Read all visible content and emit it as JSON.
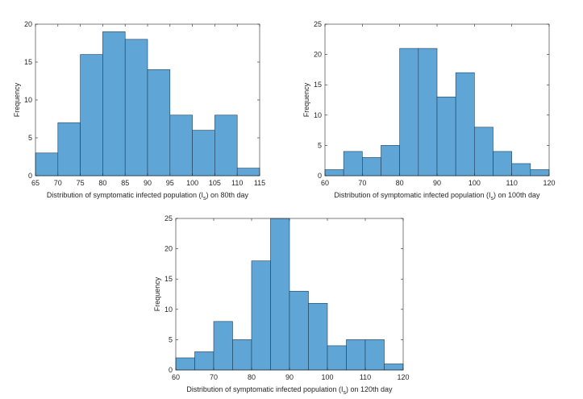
{
  "colors": {
    "bar_fill": "#5fa5d6",
    "bar_edge": "#1f3e5c",
    "axis": "#262626"
  },
  "chart_data": [
    {
      "type": "bar",
      "title": "",
      "xlabel": {
        "prefix": "Distribution of symptomatic infected population (I",
        "sub": "s",
        "suffix": ") on 80th day"
      },
      "ylabel": "Frequency",
      "bin_edges": [
        65,
        70,
        75,
        80,
        85,
        90,
        95,
        100,
        105,
        110,
        115
      ],
      "values": [
        3,
        7,
        16,
        19,
        18,
        14,
        8,
        6,
        8,
        1
      ],
      "xlim": [
        65,
        115
      ],
      "ylim": [
        0,
        20
      ],
      "xticks": [
        65,
        70,
        75,
        80,
        85,
        90,
        95,
        100,
        105,
        110,
        115
      ],
      "yticks": [
        0,
        5,
        10,
        15,
        20
      ]
    },
    {
      "type": "bar",
      "title": "",
      "xlabel": {
        "prefix": "Distribution of symptomatic infected population (I",
        "sub": "s",
        "suffix": ") on 100th day"
      },
      "ylabel": "Frequency",
      "bin_edges": [
        60,
        65,
        70,
        75,
        80,
        85,
        90,
        95,
        100,
        105,
        110,
        115,
        120
      ],
      "values": [
        1,
        4,
        3,
        5,
        21,
        21,
        13,
        17,
        8,
        4,
        2,
        1
      ],
      "xlim": [
        60,
        120
      ],
      "ylim": [
        0,
        25
      ],
      "xticks": [
        60,
        70,
        80,
        90,
        100,
        110,
        120
      ],
      "yticks": [
        0,
        5,
        10,
        15,
        20,
        25
      ]
    },
    {
      "type": "bar",
      "title": "",
      "xlabel": {
        "prefix": "Distribution of symptomatic infected population (I",
        "sub": "s",
        "suffix": ") on 120th day"
      },
      "ylabel": "Frequency",
      "bin_edges": [
        60,
        65,
        70,
        75,
        80,
        85,
        90,
        95,
        100,
        105,
        110,
        115,
        120
      ],
      "values": [
        2,
        3,
        8,
        5,
        18,
        25,
        13,
        11,
        4,
        5,
        5,
        1
      ],
      "xlim": [
        60,
        120
      ],
      "ylim": [
        0,
        25
      ],
      "xticks": [
        60,
        70,
        80,
        90,
        100,
        110,
        120
      ],
      "yticks": [
        0,
        5,
        10,
        15,
        20,
        25
      ]
    }
  ]
}
